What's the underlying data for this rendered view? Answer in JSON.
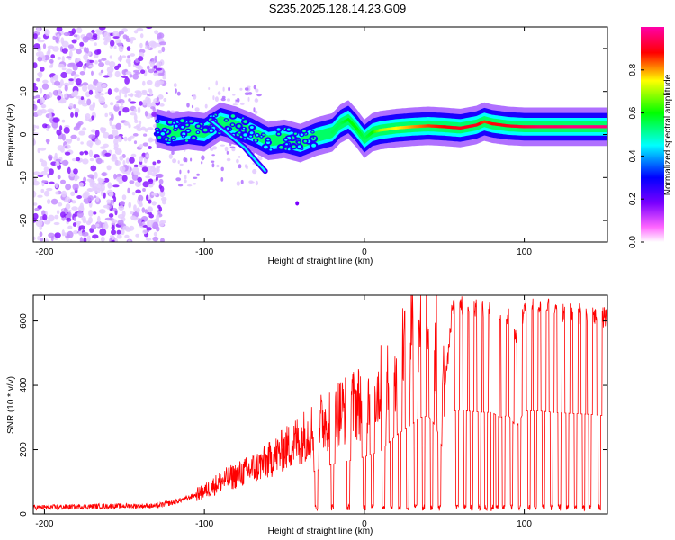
{
  "title": "S235.2025.128.14.23.G09",
  "chart_data": [
    {
      "type": "heatmap",
      "xlabel": "Height of straight line (km)",
      "ylabel": "Frequency (Hz)",
      "xlim": [
        -207,
        152
      ],
      "ylim": [
        -25,
        25
      ],
      "xticks": [
        -200,
        -100,
        0,
        100
      ],
      "yticks": [
        -20,
        -10,
        0,
        10,
        20
      ],
      "colorbar": {
        "label": "Normalized spectral amplitude",
        "range": [
          0,
          1
        ],
        "ticks": [
          "0.0",
          "0.2",
          "0.4",
          "0.6",
          "0.8"
        ],
        "colormap": [
          "#ffffff",
          "#ff00ff",
          "#7a00ff",
          "#0000ff",
          "#00ffff",
          "#00ff00",
          "#ffff00",
          "#ff0000"
        ]
      },
      "noise_region": {
        "x": [
          -207,
          -125
        ],
        "ylim": [
          -25,
          25
        ],
        "amplitude": 0.1
      },
      "ridge": {
        "x": [
          -130,
          -120,
          -110,
          -100,
          -90,
          -80,
          -70,
          -60,
          -50,
          -40,
          -30,
          -20,
          -15,
          -10,
          -5,
          0,
          5,
          10,
          20,
          30,
          40,
          50,
          60,
          70,
          75,
          80,
          90,
          100,
          110,
          120,
          130,
          140,
          152
        ],
        "freq": [
          1.5,
          0.5,
          1.0,
          0.5,
          3.0,
          2.0,
          0.5,
          -1.5,
          -1.0,
          -2.0,
          -0.5,
          0.5,
          2.5,
          3.5,
          1.5,
          -1.0,
          0.5,
          1.0,
          1.5,
          1.8,
          2.0,
          1.8,
          1.5,
          2.2,
          3.0,
          2.5,
          2.0,
          1.8,
          1.8,
          1.8,
          1.8,
          1.8,
          1.8
        ],
        "amplitude": [
          0.3,
          0.3,
          0.35,
          0.4,
          0.4,
          0.35,
          0.35,
          0.3,
          0.3,
          0.35,
          0.5,
          0.55,
          0.55,
          0.6,
          0.6,
          0.55,
          0.6,
          0.7,
          0.75,
          0.8,
          0.85,
          0.88,
          0.9,
          0.9,
          0.85,
          0.88,
          0.9,
          0.92,
          0.95,
          0.95,
          0.97,
          0.97,
          0.97
        ]
      },
      "branch": {
        "x": [
          -95,
          -85,
          -75,
          -68,
          -62
        ],
        "freq": [
          3.0,
          0.0,
          -3.0,
          -6.0,
          -8.5
        ]
      }
    },
    {
      "type": "line",
      "xlabel": "Height of straight line (km)",
      "ylabel": "SNR (10 * v/v)",
      "xlim": [
        -207,
        152
      ],
      "ylim": [
        0,
        680
      ],
      "xticks": [
        -200,
        -100,
        0,
        100
      ],
      "yticks": [
        0,
        200,
        400,
        600
      ],
      "color": "#ff0000",
      "envelope": {
        "x": [
          -207,
          -150,
          -130,
          -120,
          -110,
          -100,
          -90,
          -80,
          -70,
          -60,
          -50,
          -40,
          -30,
          -20,
          -10,
          0,
          10,
          20,
          30,
          35,
          40,
          45,
          48,
          50,
          52,
          55,
          60,
          70,
          80,
          85,
          90,
          95,
          100,
          110,
          120,
          130,
          140,
          152
        ],
        "snr": [
          20,
          25,
          25,
          35,
          50,
          70,
          100,
          120,
          140,
          165,
          200,
          235,
          270,
          310,
          330,
          355,
          390,
          490,
          560,
          600,
          610,
          540,
          430,
          400,
          470,
          640,
          645,
          635,
          630,
          600,
          615,
          540,
          640,
          640,
          630,
          625,
          620,
          610
        ]
      },
      "dropouts": [
        -30,
        -20,
        -10,
        0,
        5,
        12,
        17,
        22,
        27,
        32,
        37,
        42,
        47,
        58,
        63,
        67,
        72,
        76,
        80,
        83,
        87,
        92,
        97,
        103,
        107,
        112,
        117,
        122,
        127,
        132,
        137,
        141,
        147
      ]
    }
  ]
}
